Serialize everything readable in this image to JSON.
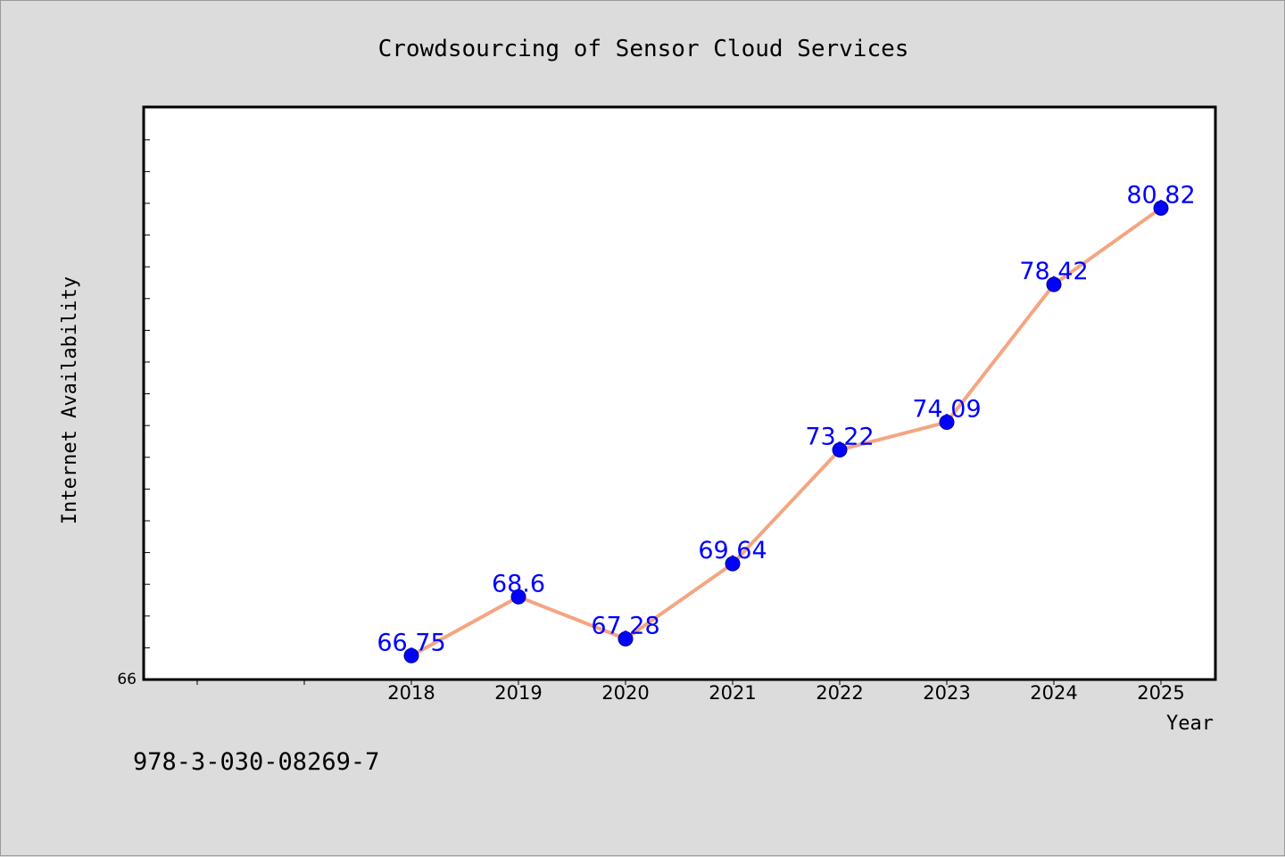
{
  "colors": {
    "background": "#dcdcdc",
    "plot_background": "#ffffff",
    "line": "#f4a582",
    "marker": "#0000ff",
    "label": "#0000ff"
  },
  "footer": {
    "code": "978-3-030-08269-7"
  },
  "chart_data": {
    "type": "line",
    "title": "Crowdsourcing of Sensor Cloud Services",
    "xlabel": "Year",
    "ylabel": "Internet Availability",
    "categories": [
      "2018",
      "2019",
      "2020",
      "2021",
      "2022",
      "2023",
      "2024",
      "2025"
    ],
    "series": [
      {
        "values": [
          66.75,
          68.6,
          67.28,
          69.64,
          73.22,
          74.09,
          78.42,
          80.82
        ]
      }
    ],
    "y_min_label": "66",
    "ylim": [
      66,
      84
    ],
    "grid": false,
    "legend": "none"
  }
}
